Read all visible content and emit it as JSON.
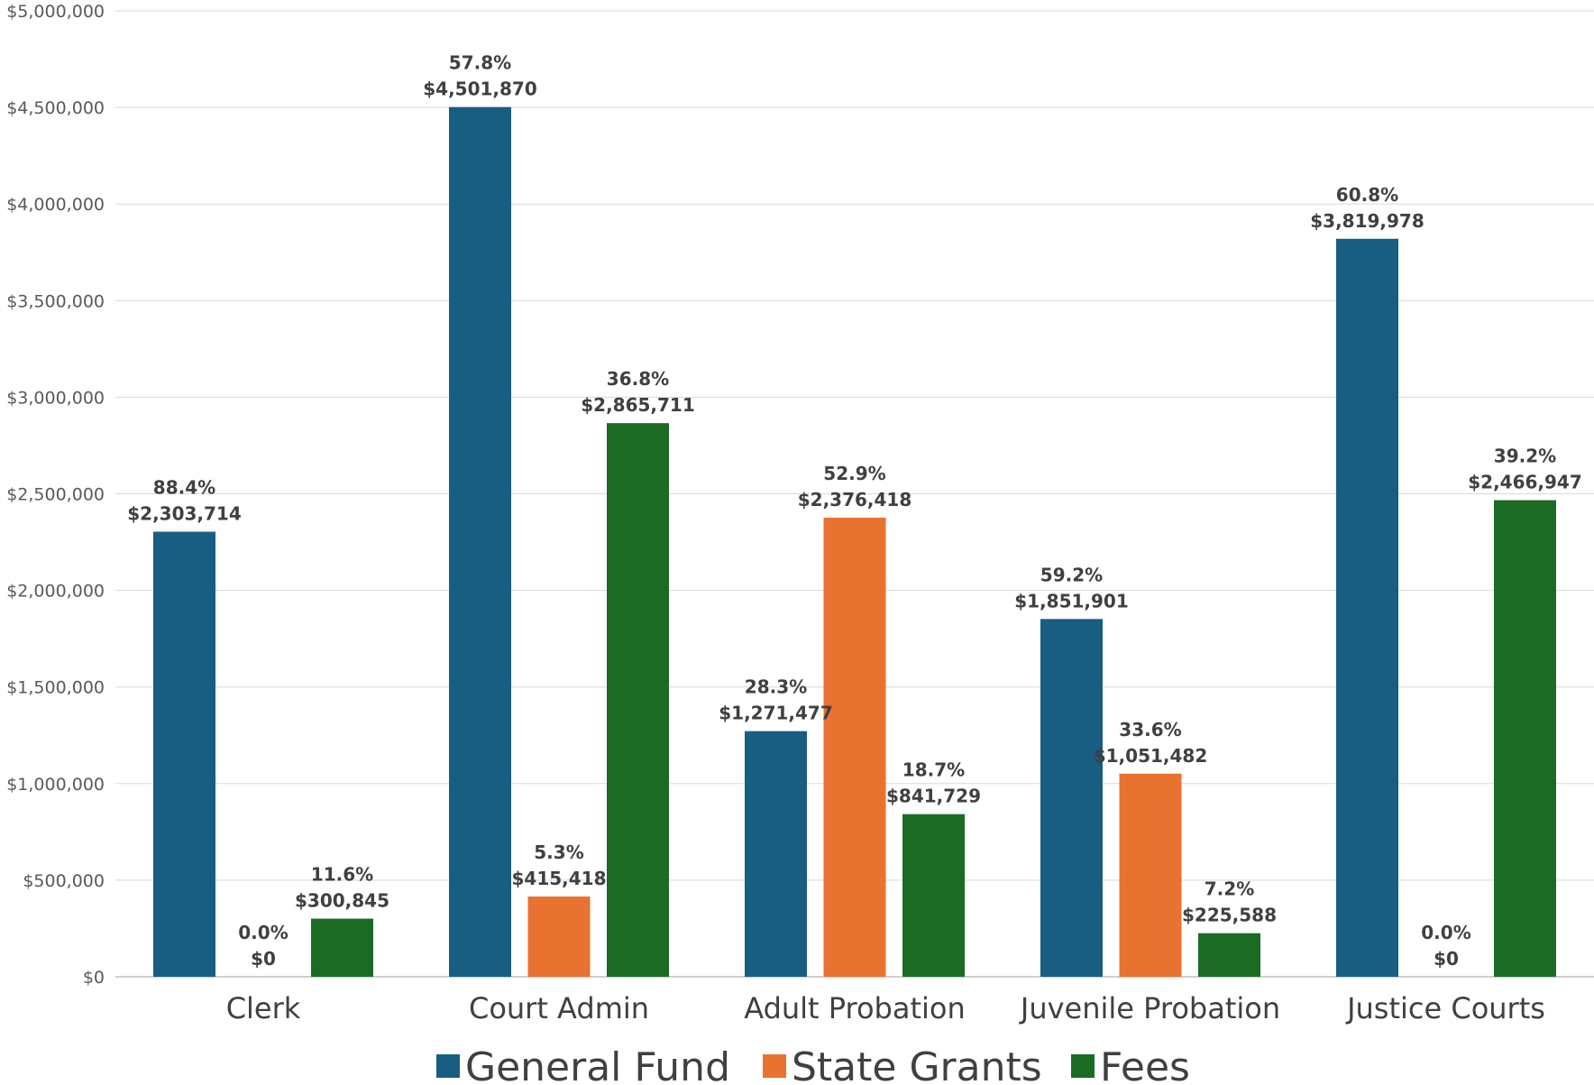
{
  "chart_data": {
    "type": "bar",
    "categories": [
      "Clerk",
      "Court Admin",
      "Adult Probation",
      "Juvenile Probation",
      "Justice Courts"
    ],
    "series": [
      {
        "name": "General Fund",
        "color": "#175E82",
        "values": [
          2303714,
          4501870,
          1271477,
          1851901,
          3819978
        ],
        "labels": [
          "$2,303,714",
          "$4,501,870",
          "$1,271,477",
          "$1,851,901",
          "$3,819,978"
        ],
        "percents": [
          "88.4%",
          "57.8%",
          "28.3%",
          "59.2%",
          "60.8%"
        ]
      },
      {
        "name": "State Grants",
        "color": "#E87230",
        "values": [
          0,
          415418,
          2376418,
          1051482,
          0
        ],
        "labels": [
          "$0",
          "$415,418",
          "$2,376,418",
          "$1,051,482",
          "$0"
        ],
        "percents": [
          "0.0%",
          "5.3%",
          "52.9%",
          "33.6%",
          "0.0%"
        ]
      },
      {
        "name": "Fees",
        "color": "#1C6B25",
        "values": [
          300845,
          2865711,
          841729,
          225588,
          2466947
        ],
        "labels": [
          "$300,845",
          "$2,865,711",
          "$841,729",
          "$225,588",
          "$2,466,947"
        ],
        "percents": [
          "11.6%",
          "36.8%",
          "18.7%",
          "7.2%",
          "39.2%"
        ]
      }
    ],
    "ylim": [
      0,
      5000000
    ],
    "yticks": [
      "$0",
      "$500,000",
      "$1,000,000",
      "$1,500,000",
      "$2,000,000",
      "$2,500,000",
      "$3,000,000",
      "$3,500,000",
      "$4,000,000",
      "$4,500,000",
      "$5,000,000"
    ],
    "grid": true,
    "legend_position": "bottom",
    "title": "",
    "xlabel": "",
    "ylabel": ""
  }
}
